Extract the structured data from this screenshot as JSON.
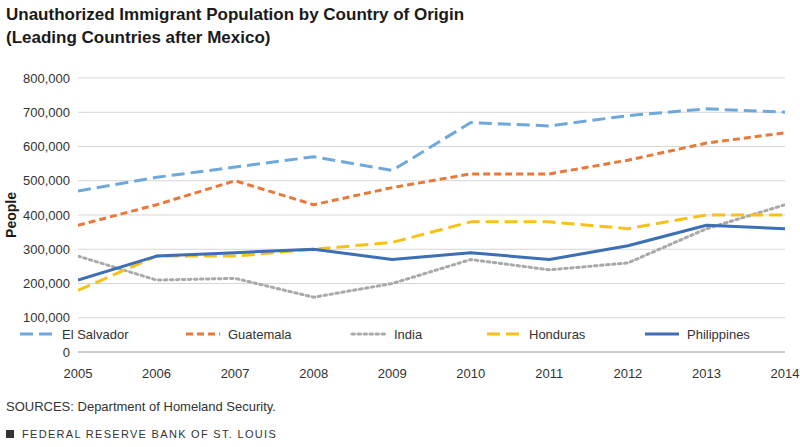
{
  "chart_data": {
    "type": "line",
    "title": "Unauthorized Immigrant Population by Country of Origin",
    "subtitle": "(Leading Countries after Mexico)",
    "y_label": "People",
    "source": "SOURCES: Department of Homeland Security.",
    "footer": "FEDERAL RESERVE BANK OF ST. LOUIS",
    "categories": [
      "2005",
      "2006",
      "2007",
      "2008",
      "2009",
      "2010",
      "2011",
      "2012",
      "2013",
      "2014"
    ],
    "series": [
      {
        "name": "El Salvador",
        "color": "#6fa8dc",
        "line_style": "long-dash",
        "values": [
          470000,
          510000,
          540000,
          570000,
          530000,
          670000,
          660000,
          690000,
          710000,
          700000
        ]
      },
      {
        "name": "Guatemala",
        "color": "#e8793a",
        "line_style": "dash",
        "values": [
          370000,
          430000,
          500000,
          430000,
          480000,
          520000,
          520000,
          560000,
          610000,
          640000
        ]
      },
      {
        "name": "India",
        "color": "#a9a9a9",
        "line_style": "dot",
        "values": [
          280000,
          210000,
          215000,
          160000,
          200000,
          270000,
          240000,
          260000,
          360000,
          430000
        ]
      },
      {
        "name": "Honduras",
        "color": "#f7c11a",
        "line_style": "long-dash",
        "values": [
          180000,
          280000,
          280000,
          300000,
          320000,
          380000,
          380000,
          360000,
          400000,
          400000
        ]
      },
      {
        "name": "Philippines",
        "color": "#3c6fb6",
        "line_style": "solid",
        "values": [
          210000,
          280000,
          290000,
          300000,
          270000,
          290000,
          270000,
          310000,
          370000,
          360000
        ]
      }
    ],
    "ylim": [
      0,
      800000
    ],
    "yticks": [
      0,
      {
        "value": 100000,
        "label": "100,000"
      },
      {
        "value": 200000,
        "label": "200,000"
      },
      {
        "value": 300000,
        "label": "300,000"
      },
      {
        "value": 400000,
        "label": "400,000"
      },
      {
        "value": 500000,
        "label": "500,000"
      },
      {
        "value": 600000,
        "label": "600,000"
      },
      {
        "value": 700000,
        "label": "700,000"
      },
      {
        "value": 800000,
        "label": "800,000"
      }
    ],
    "grid": true,
    "legend": "bottom"
  }
}
